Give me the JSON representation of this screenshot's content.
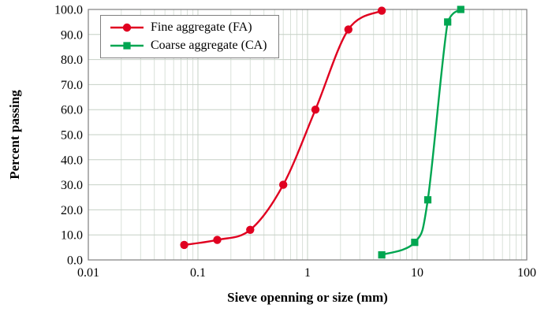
{
  "chart_data": {
    "type": "line",
    "title": "",
    "xlabel": "Sieve openning or size (mm)",
    "ylabel": "Percent passing",
    "x_scale": "log",
    "xlim": [
      0.01,
      100
    ],
    "ylim": [
      0,
      100
    ],
    "grid": {
      "horizontal_major": true,
      "vertical_major": true,
      "vertical_minor_log": true
    },
    "legend_position": "top-left-inside",
    "x_ticks": [
      {
        "value": 0.01,
        "label": "0.01"
      },
      {
        "value": 0.1,
        "label": "0.1"
      },
      {
        "value": 1,
        "label": "1"
      },
      {
        "value": 10,
        "label": "10"
      },
      {
        "value": 100,
        "label": "100"
      }
    ],
    "y_ticks": [
      {
        "value": 0,
        "label": "0.0"
      },
      {
        "value": 10,
        "label": "10.0"
      },
      {
        "value": 20,
        "label": "20.0"
      },
      {
        "value": 30,
        "label": "30.0"
      },
      {
        "value": 40,
        "label": "40.0"
      },
      {
        "value": 50,
        "label": "50.0"
      },
      {
        "value": 60,
        "label": "60.0"
      },
      {
        "value": 70,
        "label": "70.0"
      },
      {
        "value": 80,
        "label": "80.0"
      },
      {
        "value": 90,
        "label": "90.0"
      },
      {
        "value": 100,
        "label": "100.0"
      }
    ],
    "colors": {
      "grid_minor": "#d9e0d9",
      "grid_major": "#c6d0c6",
      "axis_border": "#7f7f7f"
    },
    "series": [
      {
        "name": "Fine aggregate (FA)",
        "color": "#e00020",
        "marker": "circle",
        "points": [
          [
            0.075,
            6
          ],
          [
            0.15,
            8
          ],
          [
            0.3,
            12
          ],
          [
            0.6,
            30
          ],
          [
            1.18,
            60
          ],
          [
            2.36,
            92
          ],
          [
            4.75,
            99.5
          ]
        ]
      },
      {
        "name": "Coarse aggregate (CA)",
        "color": "#00a651",
        "marker": "square",
        "points": [
          [
            4.75,
            2
          ],
          [
            9.5,
            7
          ],
          [
            12.5,
            24
          ],
          [
            19,
            95
          ],
          [
            25,
            100
          ]
        ]
      }
    ]
  }
}
